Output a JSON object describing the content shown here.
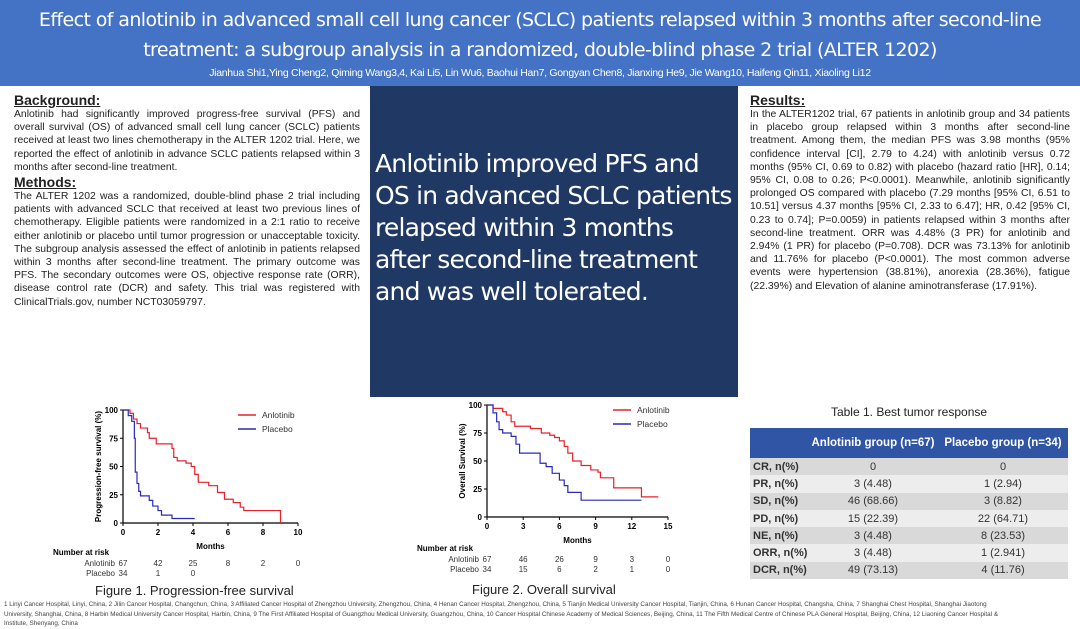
{
  "header": {
    "title": "Effect of anlotinib in advanced small cell lung cancer (SCLC) patients relapsed within 3 months after second-line treatment: a subgroup analysis in a randomized, double-blind phase 2 trial (ALTER 1202)",
    "authors": "Jianhua Shi1,Ying Cheng2, Qiming Wang3,4, Kai Li5, Lin Wu6, Baohui Han7, Gongyan Chen8, Jianxing He9, Jie Wang10, Haifeng Qin11, Xiaoling Li12"
  },
  "background": {
    "heading": "Background:",
    "text": "Anlotinib had significantly improved progress-free survival (PFS) and overall survival (OS) of advanced small cell lung cancer (SCLC) patients received at least two lines chemotherapy in the ALTER 1202 trial. Here, we reported the effect of anlotinib in advance SCLC patients relapsed within 3 months after second-line treatment."
  },
  "methods": {
    "heading": "Methods:",
    "text": "The ALTER 1202 was a randomized, double-blind phase 2 trial including patients with advanced SCLC that received at least two previous lines of chemotherapy. Eligible patients were randomized in a 2:1 ratio to receive either anlotinib or placebo until tumor progression or unacceptable toxicity. The subgroup analysis assessed the effect of anlotinib in patients relapsed within 3 months after second-line treatment. The primary outcome was PFS. The secondary outcomes were OS, objective response rate (ORR), disease control rate (DCR) and safety. This trial was registered with ClinicalTrials.gov, number NCT03059797."
  },
  "conclusion": "Anlotinib improved PFS and OS in advanced SCLC patients relapsed within 3 months after second-line treatment and was well tolerated.",
  "results": {
    "heading": "Results:",
    "text": "In the ALTER1202 trial, 67 patients in anlotinib group and 34 patients in placebo group relapsed within 3 months after second-line treatment. Among them, the median PFS was 3.98 months (95% confidence interval [CI], 2.79 to 4.24) with anlotinib versus 0.72 months (95% CI, 0.69 to 0.82) with placebo (hazard ratio [HR], 0.14; 95% CI, 0.08 to 0.26; P<0.0001). Meanwhile, anlotinib significantly prolonged OS compared with placebo (7.29 months [95% CI, 6.51 to 10.51] versus 4.37 months [95% CI, 2.33 to 6.47]; HR, 0.42 [95% CI, 0.23 to 0.74]; P=0.0059) in patients relapsed within 3 months after second-line treatment. ORR was 4.48% (3 PR) for anlotinib and 2.94% (1 PR) for placebo (P=0.708). DCR was 73.13% for anlotinib and 11.76% for placebo (P<0.0001). The most common adverse events were hypertension (38.81%), anorexia (28.36%), fatigue (22.39%) and Elevation of alanine aminotransferase (17.91%)."
  },
  "table": {
    "title": "Table 1. Best tumor response",
    "headers": [
      "",
      "Anlotinib group (n=67)",
      "Placebo group (n=34)"
    ],
    "rows": [
      [
        "CR, n(%)",
        "0",
        "0"
      ],
      [
        "PR, n(%)",
        "3 (4.48)",
        "1 (2.94)"
      ],
      [
        "SD, n(%)",
        "46 (68.66)",
        "3 (8.82)"
      ],
      [
        "PD, n(%)",
        "15 (22.39)",
        "22 (64.71)"
      ],
      [
        "NE, n(%)",
        "3 (4.48)",
        "8 (23.53)"
      ],
      [
        "ORR, n(%)",
        "3 (4.48)",
        "1 (2.941)"
      ],
      [
        "DCR, n(%)",
        "49 (73.13)",
        "4 (11.76)"
      ]
    ]
  },
  "chart_data": [
    {
      "type": "line",
      "step": true,
      "caption": "Figure 1. Progression-free survival",
      "xlabel": "Months",
      "ylabel": "Progression-free survival (%)",
      "xlim": [
        0,
        10
      ],
      "ylim": [
        0,
        100
      ],
      "xticks": [
        0,
        2,
        4,
        6,
        8,
        10
      ],
      "yticks": [
        0,
        25,
        50,
        75,
        100
      ],
      "legend": "top-right",
      "grid": false,
      "series": [
        {
          "name": "Anlotinib",
          "color": "#e8202a",
          "points": [
            [
              0,
              100
            ],
            [
              0.4,
              97
            ],
            [
              0.6,
              92
            ],
            [
              0.8,
              88
            ],
            [
              1.0,
              84
            ],
            [
              1.4,
              80
            ],
            [
              1.5,
              75
            ],
            [
              1.9,
              70
            ],
            [
              2.8,
              66
            ],
            [
              2.9,
              58
            ],
            [
              3.1,
              55
            ],
            [
              3.6,
              53
            ],
            [
              3.9,
              50
            ],
            [
              4.1,
              43
            ],
            [
              4.3,
              36
            ],
            [
              4.9,
              33
            ],
            [
              5.4,
              27
            ],
            [
              5.8,
              21
            ],
            [
              6.3,
              18
            ],
            [
              6.7,
              14
            ],
            [
              6.9,
              11
            ],
            [
              9.0,
              11
            ],
            [
              9.0,
              0
            ]
          ]
        },
        {
          "name": "Placebo",
          "color": "#2a2ab8",
          "points": [
            [
              0,
              100
            ],
            [
              0.3,
              95
            ],
            [
              0.5,
              90
            ],
            [
              0.65,
              75
            ],
            [
              0.7,
              45
            ],
            [
              0.8,
              35
            ],
            [
              0.9,
              28
            ],
            [
              1.0,
              24
            ],
            [
              1.5,
              20
            ],
            [
              1.7,
              15
            ],
            [
              2.0,
              11
            ],
            [
              2.2,
              7
            ],
            [
              2.8,
              4
            ],
            [
              4.1,
              4
            ]
          ]
        }
      ],
      "at_risk": {
        "label": "Number at risk",
        "rows": [
          {
            "name": "Anlotinib",
            "values": [
              "67",
              "42",
              "25",
              "8",
              "2",
              "0"
            ]
          },
          {
            "name": "Placebo",
            "values": [
              "34",
              "1",
              "0"
            ]
          }
        ]
      }
    },
    {
      "type": "line",
      "step": true,
      "caption": "Figure 2. Overall survival",
      "xlabel": "Months",
      "ylabel": "Overall Survival (%)",
      "xlim": [
        0,
        15
      ],
      "ylim": [
        0,
        100
      ],
      "xticks": [
        0,
        3,
        6,
        9,
        12,
        15
      ],
      "yticks": [
        0,
        25,
        50,
        75,
        100
      ],
      "legend": "top-right",
      "grid": false,
      "series": [
        {
          "name": "Anlotinib",
          "color": "#e8202a",
          "points": [
            [
              0,
              100
            ],
            [
              0.5,
              97
            ],
            [
              1.3,
              94
            ],
            [
              1.6,
              91
            ],
            [
              2.0,
              85
            ],
            [
              2.3,
              81
            ],
            [
              3.6,
              79
            ],
            [
              4.5,
              75
            ],
            [
              5.2,
              73
            ],
            [
              5.6,
              71
            ],
            [
              6.0,
              68
            ],
            [
              6.4,
              63
            ],
            [
              6.7,
              57
            ],
            [
              7.1,
              50
            ],
            [
              7.8,
              46
            ],
            [
              8.6,
              42
            ],
            [
              9.2,
              40
            ],
            [
              9.4,
              35
            ],
            [
              10.4,
              35
            ],
            [
              10.5,
              26
            ],
            [
              12.7,
              26
            ],
            [
              12.8,
              18
            ],
            [
              14.2,
              18
            ]
          ]
        },
        {
          "name": "Placebo",
          "color": "#2a2ab8",
          "points": [
            [
              0,
              100
            ],
            [
              0.5,
              93
            ],
            [
              0.8,
              85
            ],
            [
              1.0,
              78
            ],
            [
              1.3,
              75
            ],
            [
              2.0,
              72
            ],
            [
              2.4,
              65
            ],
            [
              2.7,
              57
            ],
            [
              4.1,
              57
            ],
            [
              4.4,
              48
            ],
            [
              4.9,
              45
            ],
            [
              5.4,
              39
            ],
            [
              6.0,
              33
            ],
            [
              6.4,
              28
            ],
            [
              6.7,
              22
            ],
            [
              7.8,
              22
            ],
            [
              7.8,
              15
            ],
            [
              12.8,
              15
            ]
          ]
        }
      ],
      "at_risk": {
        "label": "Number at risk",
        "rows": [
          {
            "name": "Anlotinib",
            "values": [
              "67",
              "46",
              "26",
              "9",
              "3",
              "0"
            ]
          },
          {
            "name": "Placebo",
            "values": [
              "34",
              "15",
              "6",
              "2",
              "1",
              "0"
            ]
          }
        ]
      }
    }
  ],
  "footer": "1 Linyi Cancer Hospital, Linyi, China, 2 Jilin Cancer Hospital, Changchun, China, 3 Affiliated Cancer Hospital of Zhengzhou University, Zhengzhou, China, 4 Henan Cancer Hospital, Zhengzhou, China, 5 Tianjin Medical University Cancer Hospital, Tianjin, China, 6 Hunan Cancer Hospital, Changsha, China, 7 Shanghai Chest Hospital, Shanghai Jiaotong University, Shanghai, China, 8 Harbin Medical University Cancer Hospital, Harbin, China, 9 The First Affiliated Hospital of Guangzhou Medical University, Guangzhou, China, 10 Cancer Hospital Chinese Academy of Medical Sciences, Beijing, China, 11 The Fifth Medical Centre of Chinese PLA General Hospital, Beijing, China, 12 Liaoning Cancer Hospital & Institute, Shenyang, China"
}
